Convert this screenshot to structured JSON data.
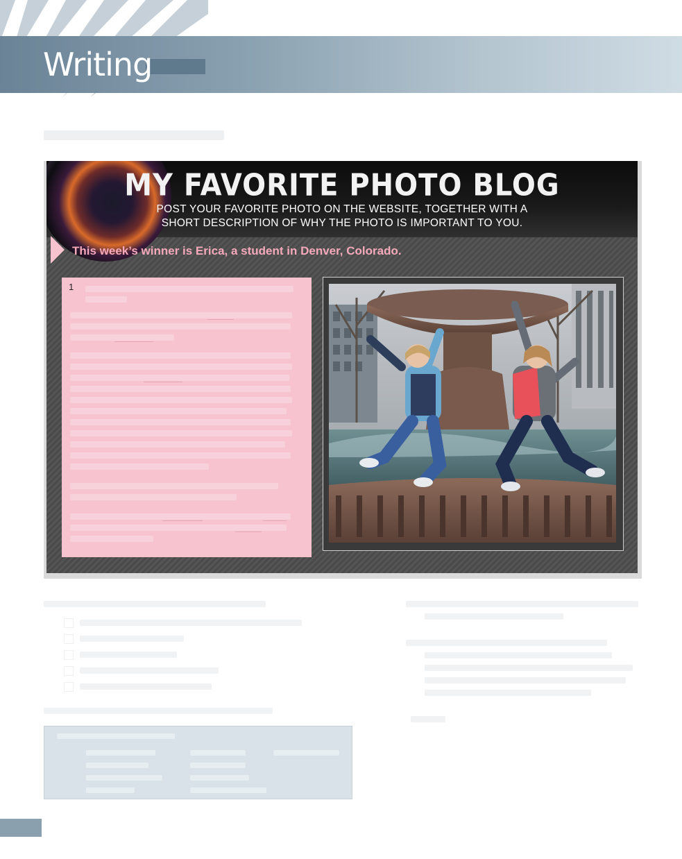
{
  "header": {
    "title": "Writing"
  },
  "blog": {
    "title": "MY FAVORITE PHOTO BLOG",
    "subtitle_line1": "POST YOUR FAVORITE PHOTO ON THE WEBSITE, TOGETHER WITH A",
    "subtitle_line2": "SHORT DESCRIPTION OF WHY THE PHOTO IS IMPORTANT TO YOU.",
    "winner": "This week’s winner is Erica, a student in Denver, Colorado.",
    "paragraph_number": "1"
  },
  "colors": {
    "header_band": "#89a0b0",
    "winner_text": "#f6a9bb",
    "textbox_bg": "#f6c3cf",
    "tip_box_bg": "#d8e2e8"
  }
}
